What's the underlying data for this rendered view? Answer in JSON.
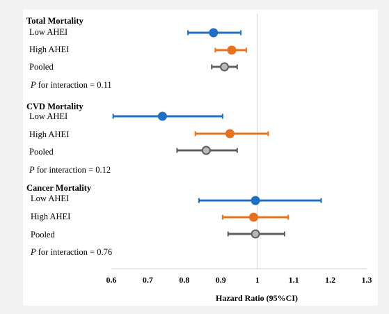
{
  "chart_data": {
    "type": "forest",
    "xlabel": "Hazard Ratio (95%CI)",
    "xlim": [
      0.6,
      1.3
    ],
    "ticks": [
      "0.6",
      "0.7",
      "0.8",
      "0.9",
      "1",
      "1.1",
      "1.2",
      "1.3"
    ],
    "reference_line": 1,
    "series_colors": {
      "Low AHEI": "#1f6fc2",
      "High AHEI": "#e8711f",
      "Pooled": "#5f5f5f"
    },
    "point_fills": {
      "Low AHEI": "#1f6fc2",
      "High AHEI": "#e8711f",
      "Pooled": "#b8b8b8"
    },
    "groups": [
      {
        "title": "Total Mortality",
        "p_prefix": "P",
        "p_text": " for interaction = 0.11",
        "rows": [
          {
            "label": "Low AHEI",
            "hr": 0.88,
            "lo": 0.81,
            "hi": 0.955
          },
          {
            "label": "High AHEI",
            "hr": 0.93,
            "lo": 0.885,
            "hi": 0.97
          },
          {
            "label": "Pooled",
            "hr": 0.91,
            "lo": 0.875,
            "hi": 0.945
          }
        ]
      },
      {
        "title": "CVD Mortality",
        "p_prefix": "P",
        "p_text": " for interaction = 0.12",
        "rows": [
          {
            "label": "Low AHEI",
            "hr": 0.74,
            "lo": 0.605,
            "hi": 0.905
          },
          {
            "label": "High AHEI",
            "hr": 0.925,
            "lo": 0.83,
            "hi": 1.03
          },
          {
            "label": "Pooled",
            "hr": 0.86,
            "lo": 0.78,
            "hi": 0.945
          }
        ]
      },
      {
        "title": "Cancer Mortality",
        "p_prefix": "P",
        "p_text": " for interaction = 0.76",
        "rows": [
          {
            "label": "Low AHEI",
            "hr": 0.995,
            "lo": 0.84,
            "hi": 1.175
          },
          {
            "label": "High AHEI",
            "hr": 0.99,
            "lo": 0.905,
            "hi": 1.085
          },
          {
            "label": "Pooled",
            "hr": 0.995,
            "lo": 0.92,
            "hi": 1.075
          }
        ]
      }
    ]
  }
}
